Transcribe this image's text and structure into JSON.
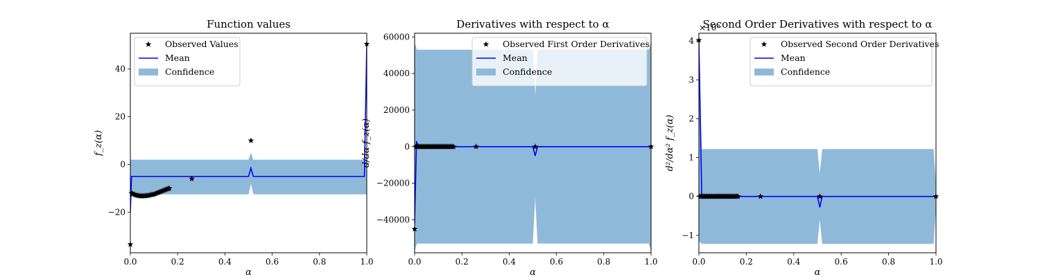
{
  "figure": {
    "background": "#ffffff",
    "mean_color": "#0000ff",
    "confidence_color": "#8fb9d9",
    "marker_color": "#000000"
  },
  "chart_data": [
    {
      "type": "line",
      "title": "Function values",
      "xlabel": "α",
      "ylabel": "f_z(α)",
      "xlim": [
        0.0,
        1.0
      ],
      "ylim": [
        -37,
        55
      ],
      "xticks": [
        0.0,
        0.2,
        0.4,
        0.6,
        0.8,
        1.0
      ],
      "xtick_labels": [
        "0.0",
        "0.2",
        "0.4",
        "0.6",
        "0.8",
        "1.0"
      ],
      "yticks": [
        -20,
        0,
        20,
        40
      ],
      "ytick_labels": [
        "−20",
        "0",
        "20",
        "40"
      ],
      "offset_text": "",
      "legend": {
        "position": "upper left",
        "entries": [
          "Observed Values",
          "Mean",
          "Confidence"
        ]
      },
      "observed": {
        "x": [
          0.0,
          0.005,
          0.01,
          0.015,
          0.02,
          0.025,
          0.03,
          0.035,
          0.04,
          0.045,
          0.05,
          0.055,
          0.06,
          0.065,
          0.07,
          0.075,
          0.08,
          0.085,
          0.09,
          0.095,
          0.1,
          0.105,
          0.11,
          0.115,
          0.12,
          0.125,
          0.13,
          0.135,
          0.14,
          0.145,
          0.15,
          0.155,
          0.16,
          0.165,
          0.26,
          0.51,
          1.0
        ],
        "y": [
          -33.5,
          -12.0,
          -12.3,
          -12.5,
          -12.7,
          -12.9,
          -13.0,
          -13.1,
          -13.2,
          -13.2,
          -13.2,
          -13.2,
          -13.2,
          -13.1,
          -13.1,
          -13.0,
          -12.9,
          -12.8,
          -12.7,
          -12.6,
          -12.5,
          -12.3,
          -12.1,
          -11.9,
          -11.7,
          -11.5,
          -11.3,
          -11.1,
          -10.9,
          -10.7,
          -10.5,
          -10.3,
          -10.2,
          -10.0,
          -6.0,
          10.0,
          50.5
        ]
      },
      "mean": {
        "x": [
          0.0,
          0.005,
          0.01,
          0.5,
          0.51,
          0.52,
          0.99,
          1.0
        ],
        "y": [
          -20.0,
          -5.0,
          -5.0,
          -5.0,
          -1.5,
          -5.0,
          -5.0,
          50.5
        ]
      },
      "confidence": {
        "x": [
          0.0,
          0.01,
          0.5,
          0.51,
          0.52,
          1.0
        ],
        "upper": [
          2.0,
          2.0,
          2.0,
          5.0,
          2.0,
          2.0
        ],
        "lower": [
          -12.5,
          -12.5,
          -12.5,
          -8.0,
          -12.5,
          -12.5
        ]
      }
    },
    {
      "type": "line",
      "title": "Derivatives with respect to α",
      "xlabel": "α",
      "ylabel": "d/dα f_z(α)",
      "xlim": [
        0.0,
        1.0
      ],
      "ylim": [
        -58000,
        62000
      ],
      "xticks": [
        0.0,
        0.2,
        0.4,
        0.6,
        0.8,
        1.0
      ],
      "xtick_labels": [
        "0.0",
        "0.2",
        "0.4",
        "0.6",
        "0.8",
        "1.0"
      ],
      "yticks": [
        -40000,
        -20000,
        0,
        20000,
        40000,
        60000
      ],
      "ytick_labels": [
        "−40000",
        "−20000",
        "0",
        "20000",
        "40000",
        "60000"
      ],
      "offset_text": "",
      "legend": {
        "position": "upper right",
        "entries": [
          "Observed First Order Derivatives",
          "Mean",
          "Confidence"
        ]
      },
      "observed": {
        "x": [
          0.0,
          0.005,
          0.01,
          0.015,
          0.02,
          0.025,
          0.03,
          0.035,
          0.04,
          0.045,
          0.05,
          0.055,
          0.06,
          0.065,
          0.07,
          0.075,
          0.08,
          0.085,
          0.09,
          0.095,
          0.1,
          0.105,
          0.11,
          0.115,
          0.12,
          0.125,
          0.13,
          0.135,
          0.14,
          0.145,
          0.15,
          0.155,
          0.16,
          0.165,
          0.26,
          0.51,
          1.0
        ],
        "y": [
          -45000,
          0,
          0,
          0,
          0,
          0,
          0,
          0,
          0,
          0,
          0,
          0,
          0,
          0,
          0,
          0,
          0,
          0,
          0,
          0,
          0,
          0,
          0,
          0,
          0,
          0,
          0,
          0,
          0,
          0,
          0,
          0,
          0,
          0,
          0,
          0,
          0
        ]
      },
      "mean": {
        "x": [
          0.0,
          0.008,
          0.015,
          0.5,
          0.51,
          0.52,
          1.0
        ],
        "y": [
          -42000,
          3000,
          0,
          0,
          -5000,
          0,
          0
        ]
      },
      "confidence": {
        "x": [
          0.0,
          0.01,
          0.02,
          0.5,
          0.51,
          0.52,
          0.99,
          1.0
        ],
        "upper": [
          57000,
          53000,
          53000,
          53000,
          28000,
          53000,
          53000,
          57000
        ],
        "lower": [
          -57000,
          -53000,
          -53000,
          -53000,
          -28000,
          -53000,
          -53000,
          -57000
        ]
      }
    },
    {
      "type": "line",
      "title": "Second Order Derivatives with respect to α",
      "xlabel": "α",
      "ylabel": "d²/dα² f_z(α)",
      "xlim": [
        0.0,
        1.0
      ],
      "ylim": [
        -1.45,
        4.2
      ],
      "xticks": [
        0.0,
        0.2,
        0.4,
        0.6,
        0.8,
        1.0
      ],
      "xtick_labels": [
        "0.0",
        "0.2",
        "0.4",
        "0.6",
        "0.8",
        "1.0"
      ],
      "yticks": [
        -1,
        0,
        1,
        2,
        3,
        4
      ],
      "ytick_labels": [
        "−1",
        "0",
        "1",
        "2",
        "3",
        "4"
      ],
      "offset_text": "×10⁹",
      "legend": {
        "position": "upper right",
        "entries": [
          "Observed Second Order Derivatives",
          "Mean",
          "Confidence"
        ]
      },
      "observed": {
        "x": [
          0.0,
          0.005,
          0.01,
          0.015,
          0.02,
          0.025,
          0.03,
          0.035,
          0.04,
          0.045,
          0.05,
          0.055,
          0.06,
          0.065,
          0.07,
          0.075,
          0.08,
          0.085,
          0.09,
          0.095,
          0.1,
          0.105,
          0.11,
          0.115,
          0.12,
          0.125,
          0.13,
          0.135,
          0.14,
          0.145,
          0.15,
          0.155,
          0.16,
          0.165,
          0.26,
          0.51,
          1.0
        ],
        "y": [
          4.02,
          0,
          0,
          0,
          0,
          0,
          0,
          0,
          0,
          0,
          0,
          0,
          0,
          0,
          0,
          0,
          0,
          0,
          0,
          0,
          0,
          0,
          0,
          0,
          0,
          0,
          0,
          0,
          0,
          0,
          0,
          0,
          0,
          0,
          0,
          0,
          0
        ]
      },
      "mean": {
        "x": [
          0.0,
          0.012,
          0.02,
          0.5,
          0.51,
          0.52,
          1.0
        ],
        "y": [
          4.0,
          0.05,
          0,
          0,
          -0.28,
          0,
          0
        ]
      },
      "confidence": {
        "x": [
          0.0,
          0.012,
          0.02,
          0.5,
          0.51,
          0.52,
          0.99,
          1.0
        ],
        "upper": [
          3.8,
          1.22,
          1.22,
          1.22,
          0.6,
          1.22,
          1.22,
          0.3
        ],
        "lower": [
          -1.15,
          -1.22,
          -1.22,
          -1.22,
          -0.6,
          -1.22,
          -1.22,
          -0.3
        ]
      }
    }
  ]
}
